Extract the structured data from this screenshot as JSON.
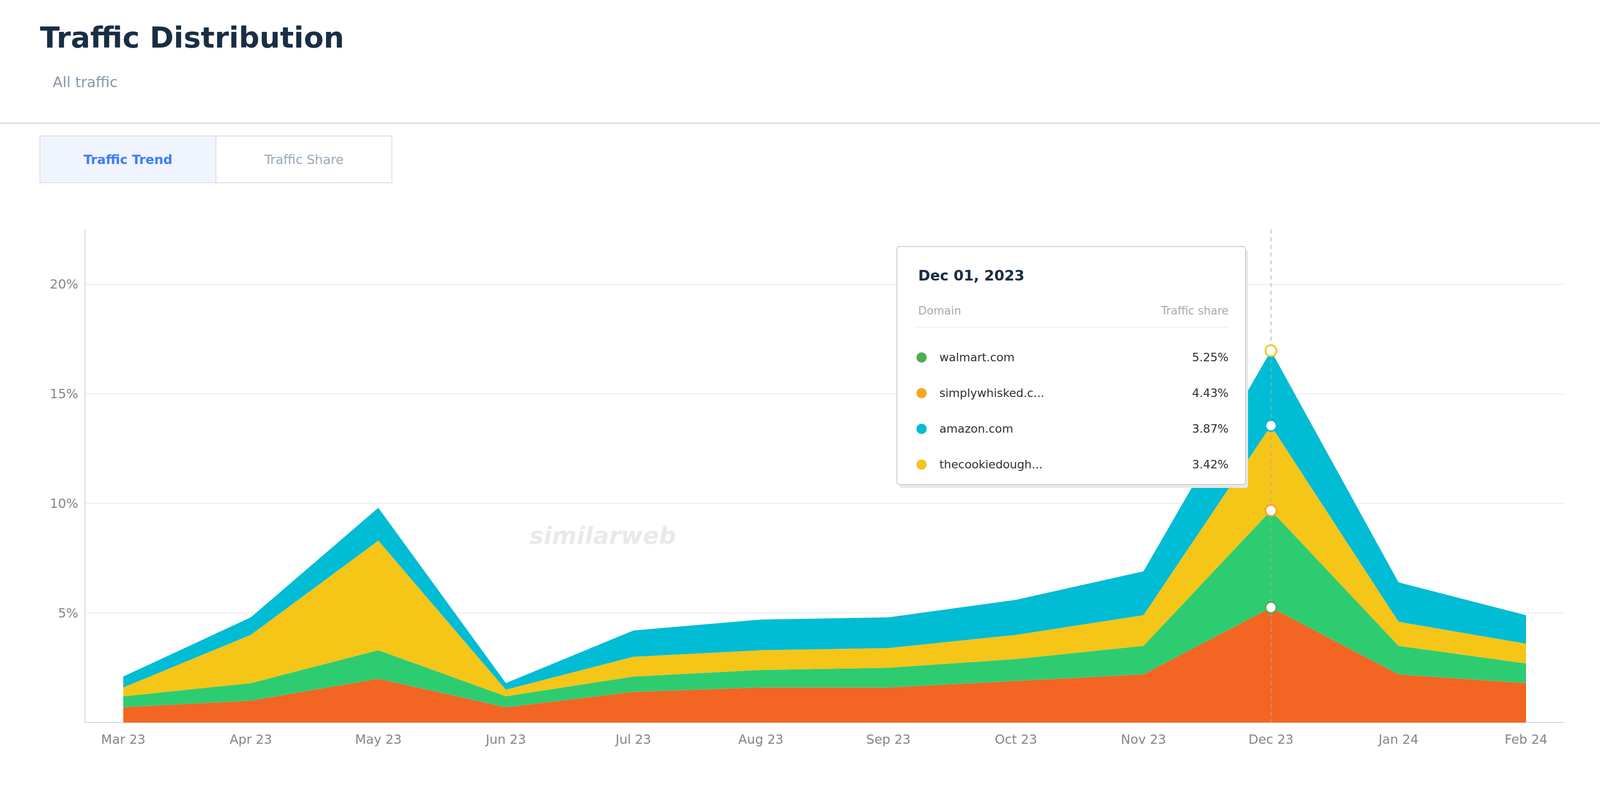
{
  "chart_data": {
    "type": "area",
    "stacked": true,
    "grid": true,
    "title": "Traffic Distribution",
    "subtitle": "All traffic",
    "tabs": [
      "Traffic Trend",
      "Traffic Share"
    ],
    "watermark": "similarweb",
    "categories": [
      "Mar 23",
      "Apr 23",
      "May 23",
      "Jun 23",
      "Jul 23",
      "Aug 23",
      "Sep 23",
      "Oct 23",
      "Nov 23",
      "Dec 23",
      "Jan 24",
      "Feb 24"
    ],
    "series": [
      {
        "name": "walmart.com",
        "color": "#F26522",
        "values": [
          0.007,
          0.01,
          0.02,
          0.007,
          0.014,
          0.016,
          0.016,
          0.019,
          0.022,
          0.0525,
          0.022,
          0.018
        ]
      },
      {
        "name": "simplywhisked.c...",
        "color": "#2ECC71",
        "values": [
          0.005,
          0.008,
          0.013,
          0.005,
          0.007,
          0.008,
          0.009,
          0.01,
          0.013,
          0.0443,
          0.013,
          0.009
        ]
      },
      {
        "name": "amazon.com",
        "color": "#F5C518",
        "values": [
          0.004,
          0.022,
          0.05,
          0.003,
          0.009,
          0.009,
          0.009,
          0.011,
          0.014,
          0.0387,
          0.011,
          0.009
        ]
      },
      {
        "name": "thecookiedough...",
        "color": "#00BCD4",
        "values": [
          0.005,
          0.008,
          0.015,
          0.003,
          0.012,
          0.014,
          0.014,
          0.016,
          0.02,
          0.0342,
          0.018,
          0.013
        ]
      }
    ],
    "ylim": [
      0,
      0.225
    ],
    "yticks": [
      {
        "value": 0.05,
        "label": "5%"
      },
      {
        "value": 0.1,
        "label": "10%"
      },
      {
        "value": 0.15,
        "label": "15%"
      },
      {
        "value": 0.2,
        "label": "20%"
      }
    ],
    "tooltip": {
      "title": "Dec 01, 2023",
      "category": "Dec 23",
      "columns": [
        "Domain",
        "Traffic share"
      ],
      "value_labels": [
        "5.25%",
        "4.43%",
        "3.87%",
        "3.42%"
      ],
      "colors": [
        "#4CAF50",
        "#F5A623",
        "#00BCD4",
        "#F5C518"
      ]
    }
  }
}
